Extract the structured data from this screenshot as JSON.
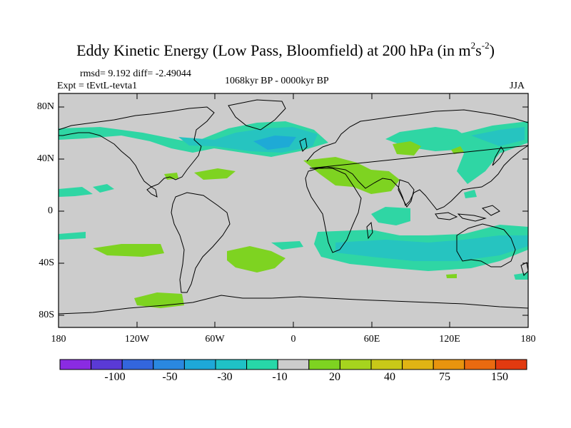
{
  "title": {
    "prefix": "Eddy Kinetic Energy (Low Pass, Bloomfield) at 200 hPa (in m",
    "sup1": "2",
    "mid": "s",
    "sup2": "-2",
    "suffix": ")"
  },
  "stats": "rmsd= 9.192  diff= -2.49044",
  "experiment": "Expt = tEvtL-tevta1",
  "period": "1068kyr BP - 0000kyr BP",
  "season": "JJA",
  "lat_labels": [
    "80N",
    "40N",
    "0",
    "40S",
    "80S"
  ],
  "lon_labels": [
    "180",
    "120W",
    "60W",
    "0",
    "60E",
    "120E",
    "180"
  ],
  "colorbar": {
    "colors": [
      "#8a2be2",
      "#5a3ad6",
      "#3366dd",
      "#2a88e0",
      "#1ea8d8",
      "#1fc2c6",
      "#27d7a8",
      "#cccccc",
      "#7ed321",
      "#a6d41e",
      "#c8c818",
      "#e0b414",
      "#e8940e",
      "#ea6a10",
      "#e23a10"
    ],
    "labels": [
      "-100",
      "-50",
      "-30",
      "-10",
      "20",
      "40",
      "75",
      "150"
    ]
  },
  "colors": {
    "background": "#cccccc",
    "positive": "#7ed321",
    "negative_light": "#2fd6a4",
    "negative_mid": "#26c4c0",
    "negative_strong": "#1eaad6"
  }
}
